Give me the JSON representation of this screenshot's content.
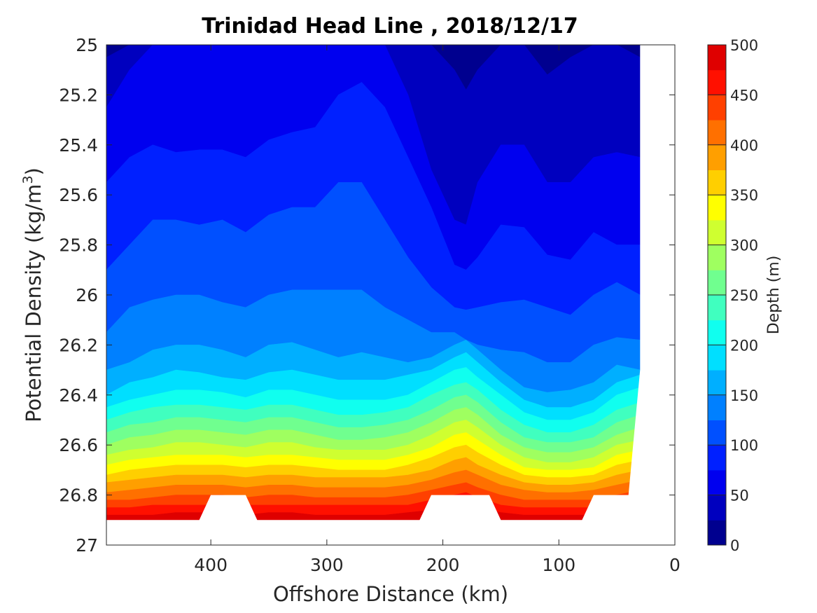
{
  "chart_data": {
    "type": "heatmap",
    "title": "Trinidad Head Line , 2018/12/17",
    "xlabel": "Offshore Distance (km)",
    "ylabel": "Potential Density (kg/m",
    "ylabel_sup": "3",
    "ylabel_close": ")",
    "colorbar_label": "Depth (m)",
    "xlim": [
      490,
      0
    ],
    "ylim": [
      25,
      27
    ],
    "x_ticks": [
      400,
      300,
      200,
      100,
      0
    ],
    "y_ticks": [
      25,
      25.2,
      25.4,
      25.6,
      25.8,
      26,
      26.2,
      26.4,
      26.6,
      26.8,
      27
    ],
    "y_tick_labels": [
      "25",
      "25.2",
      "25.4",
      "25.6",
      "25.8",
      "26",
      "26.2",
      "26.4",
      "26.6",
      "26.8",
      "27"
    ],
    "x_tick_labels": [
      "400",
      "300",
      "200",
      "100",
      "0"
    ],
    "colorbar_ticks": [
      0,
      50,
      100,
      150,
      200,
      250,
      300,
      350,
      400,
      450,
      500
    ],
    "colorbar_tick_labels": [
      "0",
      "50",
      "100",
      "150",
      "200",
      "250",
      "300",
      "350",
      "400",
      "450",
      "500"
    ],
    "colorbar_range": [
      0,
      500
    ],
    "contour_levels": [
      0,
      25,
      50,
      75,
      100,
      125,
      150,
      175,
      200,
      225,
      250,
      275,
      300,
      325,
      350,
      375,
      400,
      425,
      450,
      475,
      500
    ],
    "colormap": [
      "#00008f",
      "#0000bf",
      "#0000ef",
      "#0020ff",
      "#0050ff",
      "#0080ff",
      "#00afff",
      "#00dfff",
      "#10ffef",
      "#40ffbf",
      "#70ff8f",
      "#9fff60",
      "#cfff30",
      "#ffff00",
      "#ffcf00",
      "#ff9f00",
      "#ff7000",
      "#ff4000",
      "#ff1000",
      "#df0000",
      "#af0000"
    ],
    "depth_isolines": {
      "x": [
        490,
        470,
        450,
        430,
        410,
        390,
        370,
        350,
        330,
        310,
        290,
        270,
        250,
        230,
        210,
        190,
        180,
        170,
        150,
        130,
        110,
        90,
        70,
        50,
        30,
        20
      ],
      "isolines": [
        {
          "depth": 25,
          "sigma": [
            25.05,
            25.0,
            25.0,
            25.0,
            25.0,
            25.0,
            25.0,
            25.0,
            25.0,
            25.0,
            25.0,
            25.0,
            25.0,
            25.0,
            25.0,
            25.1,
            25.18,
            25.1,
            25.0,
            25.0,
            25.12,
            25.05,
            25.0,
            25.0,
            25.05,
            25.0
          ]
        },
        {
          "depth": 50,
          "sigma": [
            25.25,
            25.1,
            25.0,
            25.0,
            25.0,
            25.0,
            25.0,
            25.0,
            25.0,
            25.0,
            25.0,
            25.0,
            25.0,
            25.2,
            25.5,
            25.7,
            25.72,
            25.55,
            25.4,
            25.4,
            25.55,
            25.55,
            25.45,
            25.43,
            25.45,
            25.45
          ]
        },
        {
          "depth": 75,
          "sigma": [
            25.55,
            25.45,
            25.4,
            25.43,
            25.42,
            25.42,
            25.45,
            25.38,
            25.35,
            25.33,
            25.2,
            25.15,
            25.25,
            25.45,
            25.65,
            25.88,
            25.9,
            25.85,
            25.72,
            25.73,
            25.84,
            25.86,
            25.75,
            25.8,
            25.8,
            25.8
          ]
        },
        {
          "depth": 100,
          "sigma": [
            25.9,
            25.8,
            25.7,
            25.7,
            25.72,
            25.7,
            25.75,
            25.68,
            25.65,
            25.65,
            25.55,
            25.55,
            25.7,
            25.85,
            25.97,
            26.05,
            26.06,
            26.05,
            26.03,
            26.02,
            26.05,
            26.08,
            26.0,
            25.95,
            26.0,
            26.0
          ]
        },
        {
          "depth": 125,
          "sigma": [
            26.15,
            26.05,
            26.02,
            26.0,
            26.0,
            26.03,
            26.05,
            26.0,
            25.98,
            25.98,
            25.98,
            25.98,
            26.05,
            26.1,
            26.15,
            26.15,
            26.18,
            26.2,
            26.22,
            26.23,
            26.27,
            26.27,
            26.2,
            26.17,
            26.18,
            26.2
          ]
        },
        {
          "depth": 150,
          "sigma": [
            26.3,
            26.27,
            26.22,
            26.2,
            26.2,
            26.22,
            26.25,
            26.2,
            26.19,
            26.22,
            26.25,
            26.23,
            26.25,
            26.27,
            26.25,
            26.2,
            26.18,
            26.22,
            26.3,
            26.37,
            26.39,
            26.38,
            26.35,
            26.28,
            26.3,
            26.3
          ]
        },
        {
          "depth": 175,
          "sigma": [
            26.4,
            26.35,
            26.33,
            26.3,
            26.31,
            26.33,
            26.34,
            26.31,
            26.3,
            26.32,
            26.34,
            26.34,
            26.34,
            26.32,
            26.3,
            26.25,
            26.23,
            26.27,
            26.35,
            26.42,
            26.45,
            26.45,
            26.42,
            26.35,
            26.32,
            26.32
          ]
        },
        {
          "depth": 200,
          "sigma": [
            26.45,
            26.42,
            26.4,
            26.38,
            26.38,
            26.39,
            26.41,
            26.38,
            26.38,
            26.4,
            26.42,
            26.42,
            26.42,
            26.4,
            26.35,
            26.3,
            26.29,
            26.33,
            26.4,
            26.47,
            26.5,
            26.5,
            26.47,
            26.4,
            26.37,
            26.37
          ]
        },
        {
          "depth": 225,
          "sigma": [
            26.5,
            26.47,
            26.45,
            26.44,
            26.44,
            26.45,
            26.46,
            26.44,
            26.44,
            26.46,
            26.48,
            26.48,
            26.47,
            26.45,
            26.4,
            26.36,
            26.35,
            26.38,
            26.46,
            26.52,
            26.55,
            26.55,
            26.52,
            26.46,
            26.43,
            26.43
          ]
        },
        {
          "depth": 250,
          "sigma": [
            26.55,
            26.52,
            26.51,
            26.49,
            26.49,
            26.5,
            26.51,
            26.49,
            26.49,
            26.51,
            26.53,
            26.53,
            26.52,
            26.5,
            26.46,
            26.41,
            26.4,
            26.43,
            26.51,
            26.57,
            26.59,
            26.59,
            26.57,
            26.51,
            26.48,
            26.48
          ]
        },
        {
          "depth": 275,
          "sigma": [
            26.6,
            26.57,
            26.56,
            26.54,
            26.54,
            26.55,
            26.56,
            26.54,
            26.54,
            26.56,
            26.58,
            26.58,
            26.57,
            26.55,
            26.51,
            26.46,
            26.45,
            26.48,
            26.56,
            26.61,
            26.63,
            26.63,
            26.61,
            26.56,
            26.53,
            26.53
          ]
        },
        {
          "depth": 300,
          "sigma": [
            26.64,
            26.62,
            26.61,
            26.59,
            26.59,
            26.6,
            26.61,
            26.59,
            26.59,
            26.61,
            26.62,
            26.62,
            26.62,
            26.6,
            26.56,
            26.51,
            26.5,
            26.53,
            26.6,
            26.65,
            26.67,
            26.67,
            26.65,
            26.6,
            26.58,
            26.58
          ]
        },
        {
          "depth": 325,
          "sigma": [
            26.68,
            26.66,
            26.65,
            26.64,
            26.64,
            26.64,
            26.65,
            26.64,
            26.64,
            26.65,
            26.66,
            26.66,
            26.66,
            26.64,
            26.61,
            26.56,
            26.55,
            26.58,
            26.64,
            26.69,
            26.7,
            26.7,
            26.69,
            26.64,
            26.62,
            26.62
          ]
        },
        {
          "depth": 350,
          "sigma": [
            26.72,
            26.7,
            26.69,
            26.68,
            26.68,
            26.68,
            26.69,
            26.68,
            26.68,
            26.69,
            26.7,
            26.7,
            26.7,
            26.68,
            26.65,
            26.61,
            26.6,
            26.63,
            26.68,
            26.72,
            26.73,
            26.73,
            26.72,
            26.68,
            26.66,
            26.66
          ]
        },
        {
          "depth": 375,
          "sigma": [
            26.75,
            26.74,
            26.73,
            26.72,
            26.72,
            26.72,
            26.73,
            26.72,
            26.72,
            26.73,
            26.73,
            26.73,
            26.73,
            26.72,
            26.7,
            26.66,
            26.65,
            26.68,
            26.72,
            26.75,
            26.76,
            26.76,
            26.75,
            26.72,
            26.7,
            26.7
          ]
        },
        {
          "depth": 400,
          "sigma": [
            26.79,
            26.78,
            26.77,
            26.76,
            26.76,
            26.76,
            26.77,
            26.76,
            26.76,
            26.77,
            26.77,
            26.77,
            26.77,
            26.76,
            26.74,
            26.71,
            26.7,
            26.72,
            26.76,
            26.78,
            26.79,
            26.79,
            26.78,
            26.76,
            26.74,
            26.74
          ]
        },
        {
          "depth": 425,
          "sigma": [
            26.82,
            26.82,
            26.81,
            26.8,
            26.8,
            26.8,
            26.81,
            26.8,
            26.8,
            26.81,
            26.81,
            26.81,
            26.81,
            26.8,
            26.78,
            26.76,
            26.75,
            26.77,
            26.8,
            26.82,
            26.82,
            26.82,
            26.82,
            26.8,
            26.78,
            26.78
          ]
        },
        {
          "depth": 450,
          "sigma": [
            26.85,
            26.85,
            26.84,
            26.84,
            26.84,
            26.84,
            26.84,
            26.84,
            26.84,
            26.84,
            26.84,
            26.84,
            26.84,
            26.84,
            26.82,
            26.8,
            26.79,
            26.81,
            26.84,
            26.85,
            26.85,
            26.85,
            26.85,
            26.84,
            26.82,
            26.82
          ]
        },
        {
          "depth": 475,
          "sigma": [
            26.88,
            26.88,
            26.88,
            26.87,
            26.87,
            26.87,
            26.88,
            26.87,
            26.87,
            26.88,
            26.88,
            26.88,
            26.88,
            26.87,
            26.86,
            26.84,
            26.83,
            26.85,
            26.87,
            26.88,
            26.88,
            26.88,
            26.88,
            26.87,
            26.86,
            26.86
          ]
        }
      ]
    },
    "no_data_regions": [
      {
        "x": [
          0,
          20,
          30,
          30,
          40,
          70,
          80,
          90,
          150,
          160,
          210,
          220,
          360,
          370,
          400,
          410,
          490,
          490,
          0
        ],
        "sigma": [
          25.0,
          25.0,
          25.0,
          26.3,
          26.8,
          26.8,
          26.9,
          26.9,
          26.9,
          26.8,
          26.8,
          26.9,
          26.9,
          26.8,
          26.8,
          26.9,
          26.9,
          27.0,
          27.0
        ],
        "note": "masked"
      }
    ],
    "grid": false,
    "legend": "colorbar-right"
  }
}
